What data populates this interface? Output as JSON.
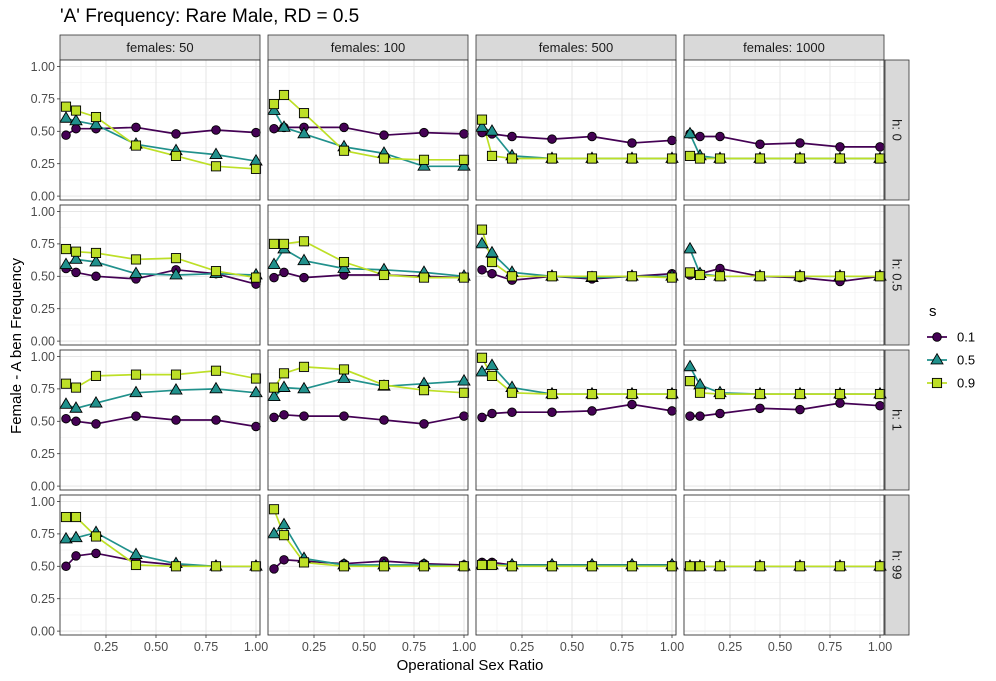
{
  "chart_data": {
    "type": "line",
    "title": "'A' Frequency: Rare Male, RD = 0.5",
    "xlabel": "Operational Sex Ratio",
    "ylabel": "Female - A ben Frequency",
    "xlim": [
      0.02,
      1.02
    ],
    "ylim": [
      -0.03,
      1.05
    ],
    "x_ticks": [
      0.25,
      0.5,
      0.75,
      1.0
    ],
    "x_tick_labels": [
      "0.25",
      "0.50",
      "0.75",
      "1.00"
    ],
    "y_ticks": [
      0,
      0.25,
      0.5,
      0.75,
      1.0
    ],
    "y_tick_labels": [
      "0.00",
      "0.25",
      "0.50",
      "0.75",
      "1.00"
    ],
    "grid": true,
    "legend_position": "right",
    "legend": {
      "title": "s",
      "entries": [
        {
          "label": "0.1",
          "color": "#440154",
          "shape": "circle"
        },
        {
          "label": "0.5",
          "color": "#21918c",
          "shape": "triangle"
        },
        {
          "label": "0.9",
          "color": "#bddf26",
          "shape": "square"
        }
      ]
    },
    "column_facets": [
      "females: 50",
      "females: 100",
      "females: 500",
      "females: 1000"
    ],
    "row_facets": [
      "h: 0",
      "h: 0.5",
      "h: 1",
      "h: 99"
    ],
    "x": [
      0.05,
      0.1,
      0.2,
      0.4,
      0.6,
      0.8,
      1.0
    ],
    "panels": [
      [
        {
          "s0.1": [
            0.47,
            0.52,
            0.52,
            0.53,
            0.48,
            0.51,
            0.49
          ],
          "s0.5": [
            0.6,
            0.58,
            0.55,
            0.4,
            0.35,
            0.32,
            0.27
          ],
          "s0.9": [
            0.69,
            0.66,
            0.61,
            0.39,
            0.31,
            0.23,
            0.21
          ]
        },
        {
          "s0.1": [
            0.52,
            0.53,
            0.53,
            0.53,
            0.47,
            0.49,
            0.48
          ],
          "s0.5": [
            0.66,
            0.53,
            0.48,
            0.38,
            0.33,
            0.23,
            0.23
          ],
          "s0.9": [
            0.71,
            0.78,
            0.64,
            0.35,
            0.29,
            0.28,
            0.28
          ]
        },
        {
          "s0.1": [
            0.49,
            0.48,
            0.46,
            0.44,
            0.46,
            0.41,
            0.43
          ],
          "s0.5": [
            0.53,
            0.5,
            0.31,
            0.29,
            0.29,
            0.29,
            0.29
          ],
          "s0.9": [
            0.59,
            0.31,
            0.29,
            0.29,
            0.29,
            0.29,
            0.29
          ]
        },
        {
          "s0.1": [
            0.48,
            0.46,
            0.46,
            0.4,
            0.41,
            0.38,
            0.38
          ],
          "s0.5": [
            0.48,
            0.31,
            0.29,
            0.29,
            0.29,
            0.29,
            0.29
          ],
          "s0.9": [
            0.31,
            0.29,
            0.29,
            0.29,
            0.29,
            0.29,
            0.29
          ]
        }
      ],
      [
        {
          "s0.1": [
            0.56,
            0.53,
            0.5,
            0.48,
            0.55,
            0.52,
            0.44
          ],
          "s0.5": [
            0.59,
            0.63,
            0.61,
            0.52,
            0.51,
            0.52,
            0.51
          ],
          "s0.9": [
            0.71,
            0.69,
            0.68,
            0.63,
            0.64,
            0.54,
            0.49
          ]
        },
        {
          "s0.1": [
            0.49,
            0.53,
            0.49,
            0.51,
            0.51,
            0.5,
            0.49
          ],
          "s0.5": [
            0.59,
            0.71,
            0.62,
            0.56,
            0.55,
            0.53,
            0.5
          ],
          "s0.9": [
            0.75,
            0.75,
            0.77,
            0.61,
            0.51,
            0.49,
            0.49
          ]
        },
        {
          "s0.1": [
            0.55,
            0.52,
            0.47,
            0.5,
            0.48,
            0.5,
            0.52
          ],
          "s0.5": [
            0.75,
            0.68,
            0.53,
            0.5,
            0.49,
            0.5,
            0.5
          ],
          "s0.9": [
            0.86,
            0.61,
            0.5,
            0.5,
            0.5,
            0.5,
            0.49
          ]
        },
        {
          "s0.1": [
            0.51,
            0.52,
            0.56,
            0.5,
            0.49,
            0.46,
            0.5
          ],
          "s0.5": [
            0.71,
            0.52,
            0.5,
            0.5,
            0.5,
            0.5,
            0.5
          ],
          "s0.9": [
            0.53,
            0.51,
            0.5,
            0.5,
            0.5,
            0.5,
            0.5
          ]
        }
      ],
      [
        {
          "s0.1": [
            0.52,
            0.5,
            0.48,
            0.54,
            0.51,
            0.51,
            0.46
          ],
          "s0.5": [
            0.63,
            0.6,
            0.64,
            0.72,
            0.74,
            0.75,
            0.72
          ],
          "s0.9": [
            0.79,
            0.76,
            0.85,
            0.86,
            0.86,
            0.89,
            0.83
          ]
        },
        {
          "s0.1": [
            0.53,
            0.55,
            0.54,
            0.54,
            0.51,
            0.48,
            0.54
          ],
          "s0.5": [
            0.69,
            0.76,
            0.75,
            0.83,
            0.77,
            0.79,
            0.81
          ],
          "s0.9": [
            0.76,
            0.87,
            0.92,
            0.9,
            0.78,
            0.74,
            0.72
          ]
        },
        {
          "s0.1": [
            0.53,
            0.56,
            0.57,
            0.57,
            0.58,
            0.63,
            0.58
          ],
          "s0.5": [
            0.88,
            0.93,
            0.76,
            0.71,
            0.71,
            0.71,
            0.71
          ],
          "s0.9": [
            0.99,
            0.85,
            0.72,
            0.71,
            0.71,
            0.71,
            0.71
          ]
        },
        {
          "s0.1": [
            0.54,
            0.54,
            0.56,
            0.6,
            0.59,
            0.64,
            0.62
          ],
          "s0.5": [
            0.92,
            0.78,
            0.72,
            0.71,
            0.71,
            0.71,
            0.71
          ],
          "s0.9": [
            0.81,
            0.72,
            0.71,
            0.71,
            0.71,
            0.71,
            0.71
          ]
        }
      ],
      [
        {
          "s0.1": [
            0.5,
            0.58,
            0.6,
            0.54,
            0.51,
            0.5,
            0.5
          ],
          "s0.5": [
            0.71,
            0.72,
            0.76,
            0.59,
            0.52,
            0.5,
            0.5
          ],
          "s0.9": [
            0.88,
            0.88,
            0.73,
            0.51,
            0.5,
            0.5,
            0.5
          ]
        },
        {
          "s0.1": [
            0.48,
            0.55,
            0.54,
            0.52,
            0.54,
            0.52,
            0.51
          ],
          "s0.5": [
            0.75,
            0.82,
            0.56,
            0.51,
            0.51,
            0.51,
            0.5
          ],
          "s0.9": [
            0.94,
            0.74,
            0.53,
            0.5,
            0.5,
            0.5,
            0.5
          ]
        },
        {
          "s0.1": [
            0.53,
            0.53,
            0.51,
            0.51,
            0.51,
            0.51,
            0.51
          ],
          "s0.5": [
            0.51,
            0.51,
            0.51,
            0.51,
            0.51,
            0.51,
            0.51
          ],
          "s0.9": [
            0.51,
            0.51,
            0.5,
            0.5,
            0.5,
            0.5,
            0.5
          ]
        },
        {
          "s0.1": [
            0.5,
            0.5,
            0.5,
            0.5,
            0.5,
            0.5,
            0.5
          ],
          "s0.5": [
            0.5,
            0.5,
            0.5,
            0.5,
            0.5,
            0.5,
            0.5
          ],
          "s0.9": [
            0.5,
            0.5,
            0.5,
            0.5,
            0.5,
            0.5,
            0.5
          ]
        }
      ]
    ]
  }
}
